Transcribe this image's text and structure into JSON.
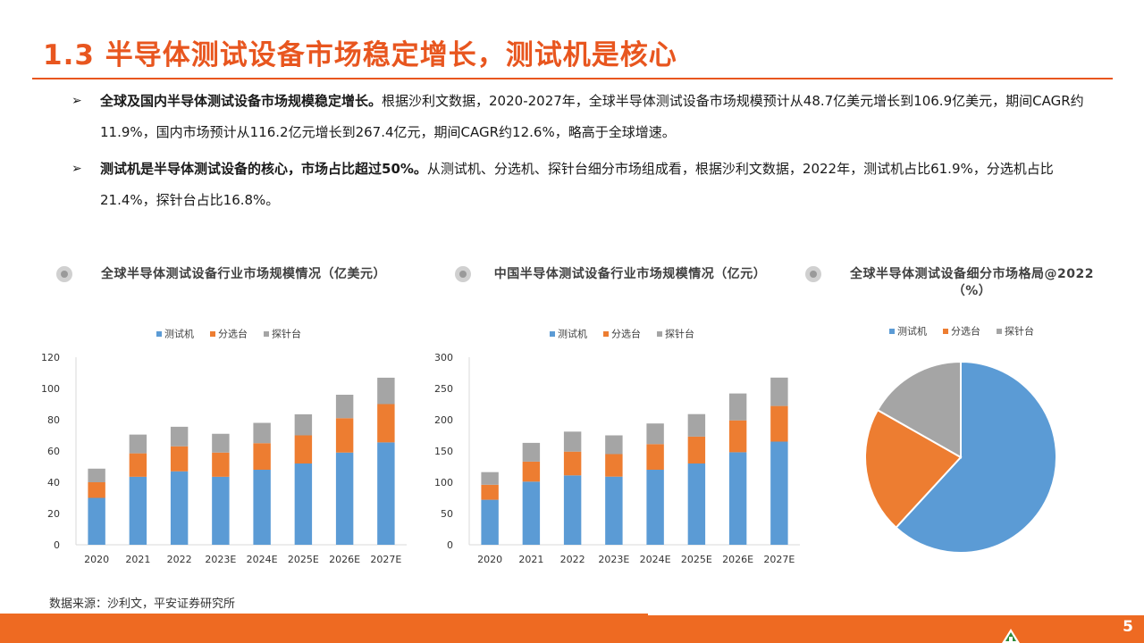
{
  "header": {
    "title": "1.3 半导体测试设备市场稳定增长，测试机是核心"
  },
  "bullets": [
    {
      "arrow": "➢",
      "bold": "全球及国内半导体测试设备市场规模稳定增长。",
      "text": "根据沙利文数据，2020-2027年，全球半导体测试设备市场规模预计从48.7亿美元增长到106.9亿美元，期间CAGR约11.9%，国内市场预计从116.2亿元增长到267.4亿元，期间CAGR约12.6%，略高于全球增速。"
    },
    {
      "arrow": "➢",
      "bold": "测试机是半导体测试设备的核心，市场占比超过50%。",
      "text": "从测试机、分选机、探针台细分市场组成看，根据沙利文数据，2022年，测试机占比61.9%，分选机占比21.4%，探针台占比16.8%。"
    }
  ],
  "colors": {
    "accent": "#e8561f",
    "tester": "#5b9bd5",
    "handler": "#ed7d31",
    "prober": "#a5a5a5"
  },
  "chart_data": [
    {
      "type": "bar",
      "stacked": true,
      "title": "全球半导体测试设备行业市场规模情况（亿美元）",
      "categories": [
        "2020",
        "2021",
        "2022",
        "2023E",
        "2024E",
        "2025E",
        "2026E",
        "2027E"
      ],
      "series": [
        {
          "name": "测试机",
          "color": "#5b9bd5",
          "values": [
            30,
            43.5,
            47,
            43.5,
            48,
            52,
            59,
            65.5
          ]
        },
        {
          "name": "分选台",
          "color": "#ed7d31",
          "values": [
            10,
            15,
            16,
            15.5,
            17,
            18,
            22,
            24.5
          ]
        },
        {
          "name": "探针台",
          "color": "#a5a5a5",
          "values": [
            8.7,
            12,
            12.5,
            12,
            13,
            13.5,
            15,
            16.9
          ]
        }
      ],
      "ylim": [
        0,
        120
      ],
      "yticks": [
        0,
        20,
        40,
        60,
        80,
        100,
        120
      ],
      "legend": "top"
    },
    {
      "type": "bar",
      "stacked": true,
      "title": "中国半导体测试设备行业市场规模情况（亿元）",
      "categories": [
        "2020",
        "2021",
        "2022",
        "2023E",
        "2024E",
        "2025E",
        "2026E",
        "2027E"
      ],
      "series": [
        {
          "name": "测试机",
          "color": "#5b9bd5",
          "values": [
            72,
            101,
            111,
            109,
            120,
            130,
            148,
            165
          ]
        },
        {
          "name": "分选台",
          "color": "#ed7d31",
          "values": [
            24,
            32,
            38,
            36,
            41,
            43,
            51,
            57
          ]
        },
        {
          "name": "探针台",
          "color": "#a5a5a5",
          "values": [
            20.2,
            30,
            32,
            30,
            33,
            36,
            43,
            45.4
          ]
        }
      ],
      "ylim": [
        0,
        300
      ],
      "yticks": [
        0,
        50,
        100,
        150,
        200,
        250,
        300
      ],
      "legend": "top"
    },
    {
      "type": "pie",
      "title": "全球半导体测试设备细分市场格局@2022（%）",
      "labels": [
        "测试机",
        "分选台",
        "探针台"
      ],
      "values": [
        61.9,
        21.4,
        16.8
      ],
      "colors": [
        "#5b9bd5",
        "#ed7d31",
        "#a5a5a5"
      ],
      "legend": "top"
    }
  ],
  "footer": {
    "source": "数据来源：沙利文，平安证券研究所",
    "page": "5"
  }
}
